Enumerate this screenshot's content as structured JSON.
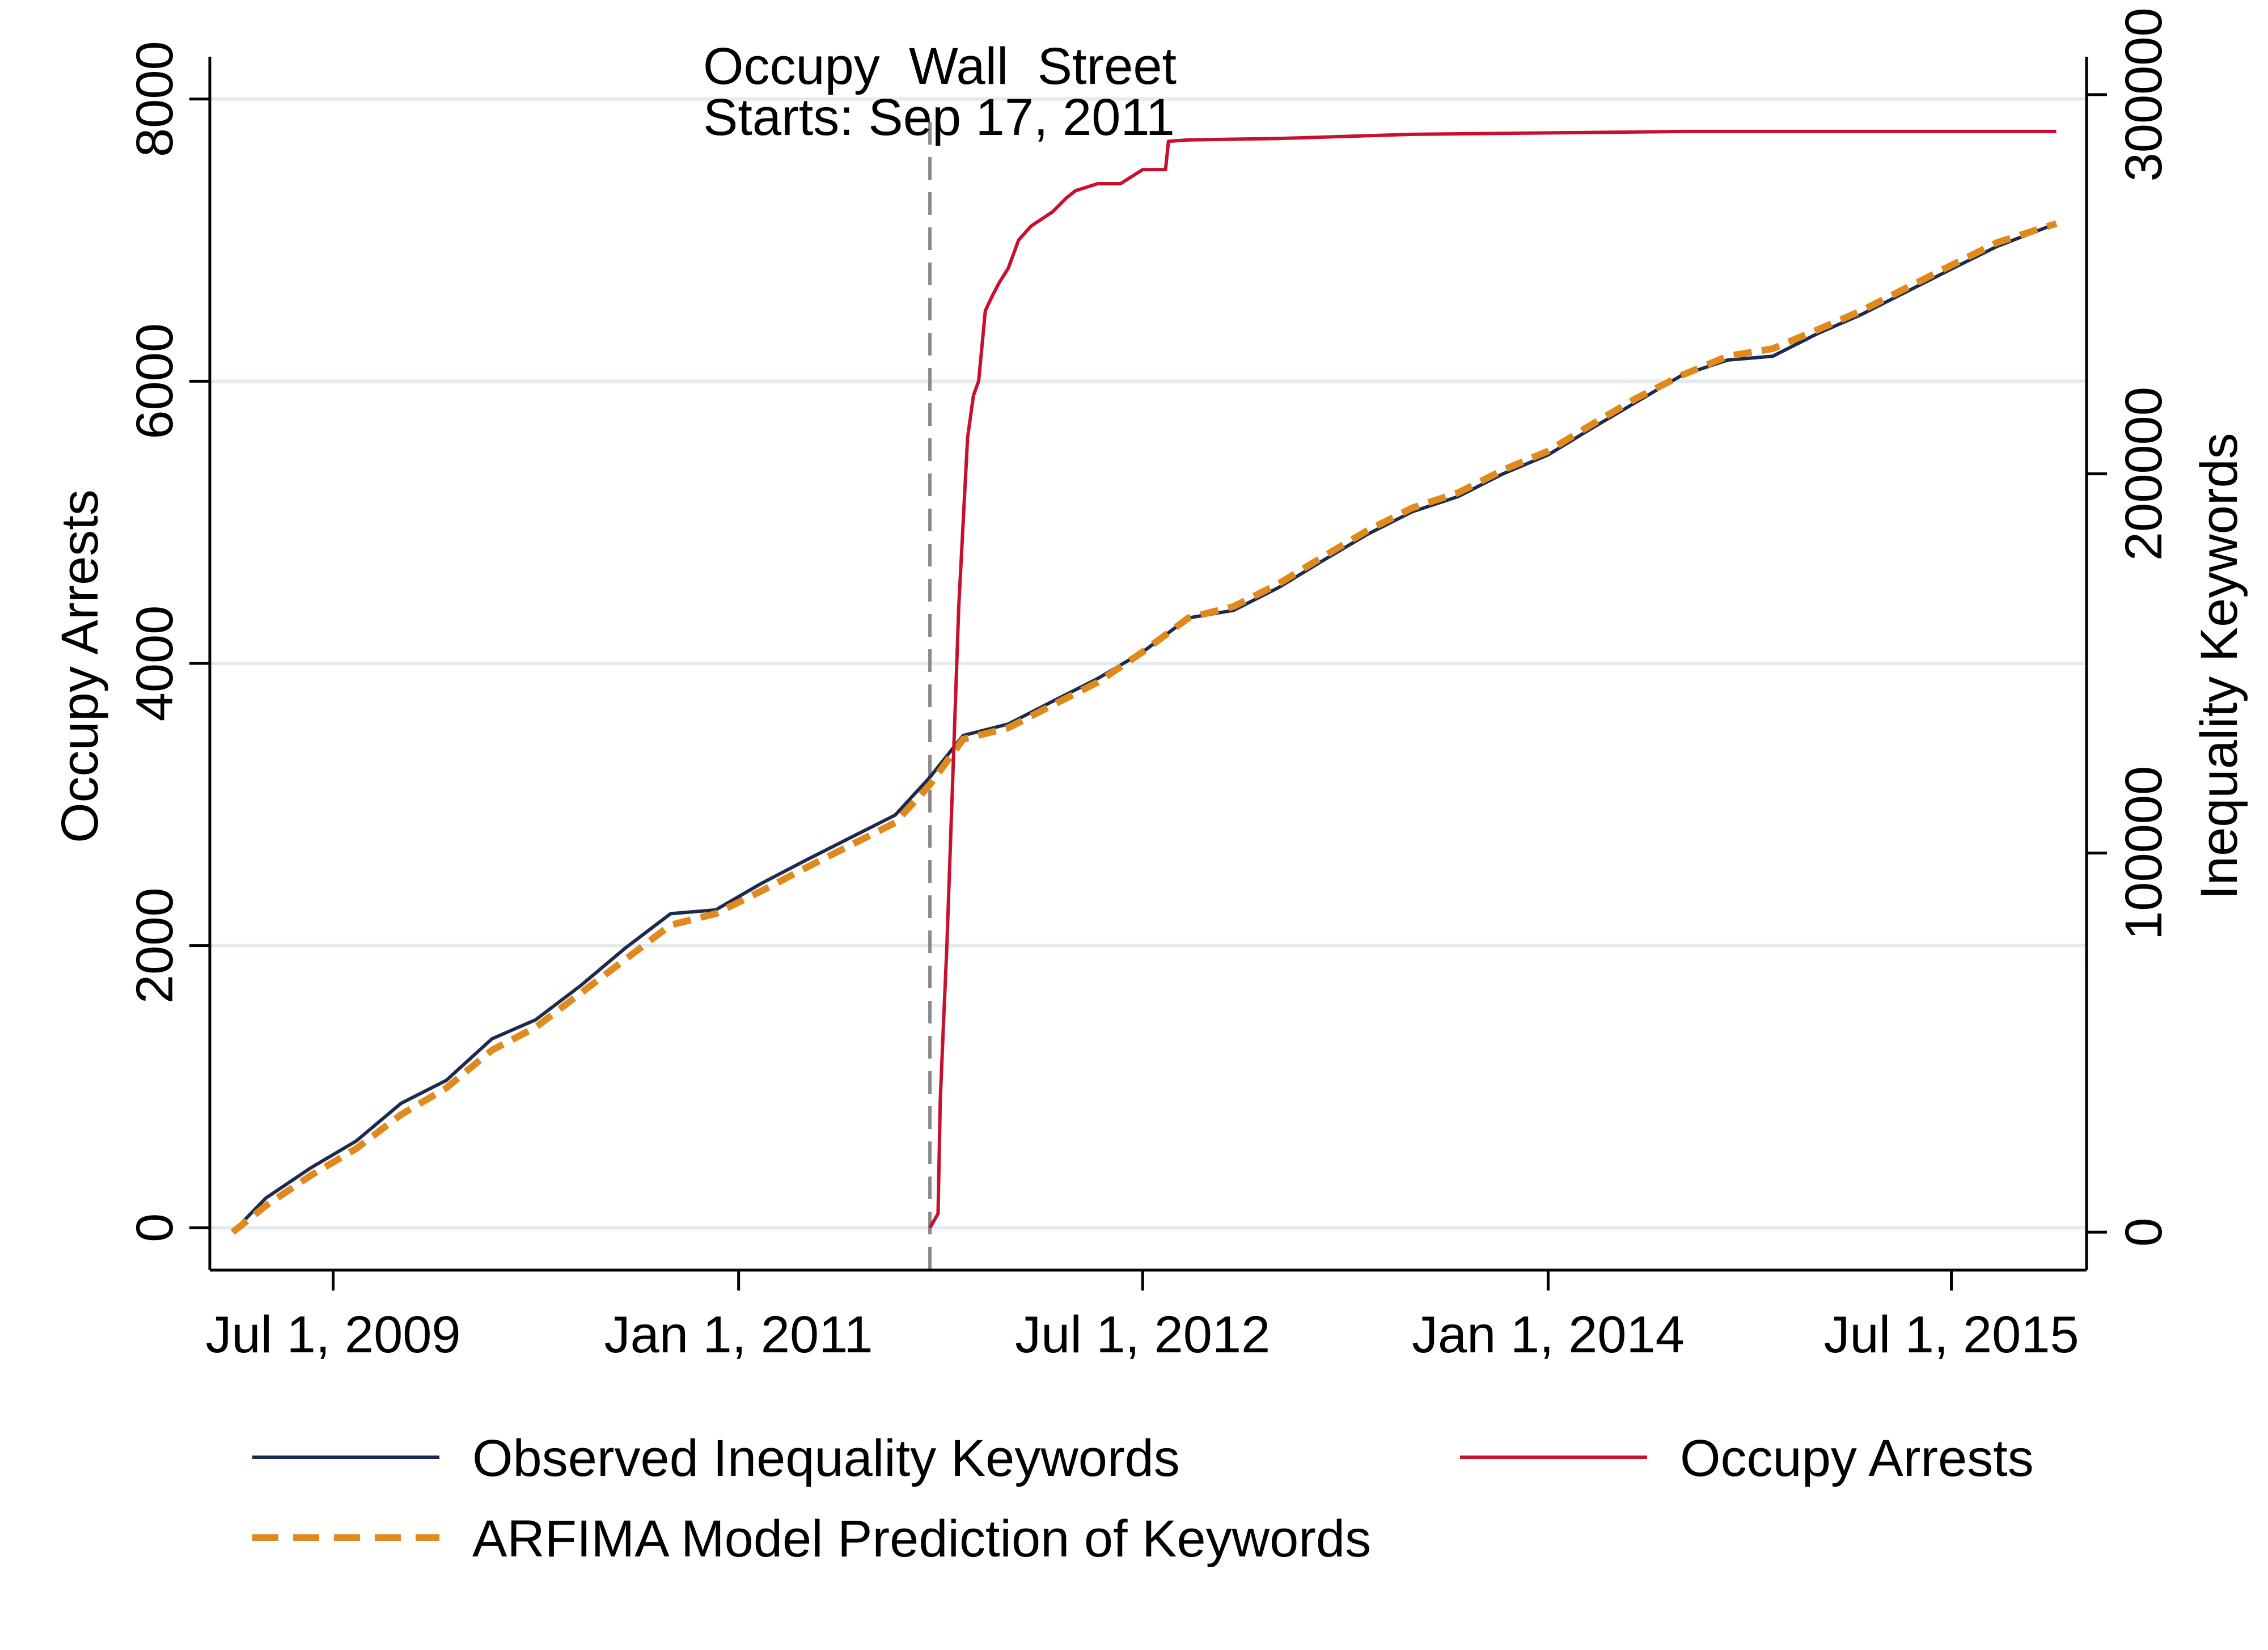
{
  "chart_data": {
    "type": "line",
    "x_axis": {
      "type": "date",
      "range": [
        "2009-01-15",
        "2015-12-31"
      ],
      "tick_values": [
        "2009-07-01",
        "2011-01-01",
        "2012-07-01",
        "2014-01-01",
        "2015-07-01"
      ],
      "tick_labels": [
        "Jul 1, 2009",
        "Jan 1, 2011",
        "Jul 1, 2012",
        "Jan 1, 2014",
        "Jul 1, 2015"
      ]
    },
    "y_left": {
      "label": "Occupy Arrests",
      "range": [
        -300,
        8300
      ],
      "ticks": [
        0,
        2000,
        4000,
        6000,
        8000
      ],
      "tick_labels": [
        "0",
        "2000",
        "4000",
        "6000",
        "8000"
      ]
    },
    "y_right": {
      "label": "Inequality Keywords",
      "range": [
        -10000,
        310000
      ],
      "ticks": [
        0,
        100000,
        200000,
        300000
      ],
      "tick_labels": [
        "0",
        "100000",
        "200000",
        "300000"
      ]
    },
    "grid": true,
    "annotation": {
      "line1": "Occupy  Wall  Street",
      "line2": "Starts: Sep 17, 2011",
      "date": "2011-09-17"
    },
    "legend": {
      "placement": "bottom",
      "entries": [
        {
          "label": "Observed Inequality Keywords",
          "color": "#1b2a4e",
          "style": "solid"
        },
        {
          "label": "Occupy Arrests",
          "color": "#c8102e",
          "style": "solid"
        },
        {
          "label": "ARFIMA Model Prediction of Keywords",
          "color": "#e08a1e",
          "style": "dashed"
        }
      ]
    },
    "series": [
      {
        "name": "Observed Inequality Keywords",
        "axis": "right",
        "color": "#1b2a4e",
        "style": "solid",
        "x": [
          "2009-02-15",
          "2009-04-01",
          "2009-06-01",
          "2009-08-01",
          "2009-10-01",
          "2009-12-01",
          "2010-02-01",
          "2010-04-01",
          "2010-06-01",
          "2010-08-01",
          "2010-10-01",
          "2010-12-01",
          "2011-02-01",
          "2011-04-01",
          "2011-06-01",
          "2011-08-01",
          "2011-09-17",
          "2011-11-01",
          "2012-01-01",
          "2012-03-01",
          "2012-05-01",
          "2012-07-01",
          "2012-09-01",
          "2012-11-01",
          "2013-01-01",
          "2013-03-01",
          "2013-05-01",
          "2013-07-01",
          "2013-09-01",
          "2013-11-01",
          "2014-01-01",
          "2014-03-01",
          "2014-05-01",
          "2014-07-01",
          "2014-09-01",
          "2014-11-01",
          "2015-01-01",
          "2015-03-01",
          "2015-05-01",
          "2015-07-01",
          "2015-09-01",
          "2015-11-20"
        ],
        "values": [
          0,
          9000,
          17000,
          24000,
          34000,
          40000,
          51000,
          56000,
          65000,
          75000,
          84000,
          85000,
          92000,
          98000,
          104000,
          110000,
          120000,
          131000,
          134000,
          140000,
          146000,
          153000,
          162000,
          164000,
          170000,
          177000,
          184000,
          190000,
          194000,
          200000,
          205000,
          212000,
          219000,
          226000,
          230000,
          231000,
          237000,
          242000,
          248000,
          254000,
          260000,
          266000
        ]
      },
      {
        "name": "ARFIMA Model Prediction of Keywords",
        "axis": "right",
        "color": "#e08a1e",
        "style": "dashed",
        "x": [
          "2009-02-15",
          "2009-04-01",
          "2009-06-01",
          "2009-08-01",
          "2009-10-01",
          "2009-12-01",
          "2010-02-01",
          "2010-04-01",
          "2010-06-01",
          "2010-08-01",
          "2010-10-01",
          "2010-12-01",
          "2011-02-01",
          "2011-04-01",
          "2011-06-01",
          "2011-08-01",
          "2011-09-17",
          "2011-11-01",
          "2012-01-01",
          "2012-03-01",
          "2012-05-01",
          "2012-07-01",
          "2012-09-01",
          "2012-11-01",
          "2013-01-01",
          "2013-03-01",
          "2013-05-01",
          "2013-07-01",
          "2013-09-01",
          "2013-11-01",
          "2014-01-01",
          "2014-03-01",
          "2014-05-01",
          "2014-07-01",
          "2014-09-01",
          "2014-11-01",
          "2015-01-01",
          "2015-03-01",
          "2015-05-01",
          "2015-07-01",
          "2015-09-01",
          "2015-11-20"
        ],
        "values": [
          0,
          7000,
          15000,
          22000,
          31000,
          38000,
          48000,
          54000,
          63000,
          72000,
          81000,
          84000,
          90000,
          96000,
          102000,
          108000,
          118000,
          130000,
          133000,
          139000,
          145000,
          153000,
          162000,
          165000,
          171000,
          178000,
          185000,
          191000,
          195000,
          201000,
          206000,
          213000,
          220000,
          226000,
          231000,
          233000,
          238000,
          243000,
          249000,
          255000,
          261000,
          266000
        ]
      },
      {
        "name": "Occupy Arrests",
        "axis": "left",
        "color": "#c8102e",
        "style": "solid",
        "x": [
          "2011-09-17",
          "2011-09-28",
          "2011-10-01",
          "2011-10-05",
          "2011-10-10",
          "2011-10-14",
          "2011-10-20",
          "2011-10-26",
          "2011-11-01",
          "2011-11-07",
          "2011-11-15",
          "2011-11-22",
          "2011-12-01",
          "2011-12-10",
          "2011-12-20",
          "2012-01-01",
          "2012-01-15",
          "2012-02-01",
          "2012-03-01",
          "2012-03-20",
          "2012-04-01",
          "2012-05-01",
          "2012-06-01",
          "2012-07-01",
          "2012-08-01",
          "2012-08-05",
          "2012-09-01",
          "2013-01-01",
          "2013-07-01",
          "2014-01-01",
          "2014-07-01",
          "2015-01-01",
          "2015-07-01",
          "2015-11-20"
        ],
        "values": [
          0,
          100,
          900,
          1400,
          2000,
          2600,
          3500,
          4400,
          5000,
          5600,
          5900,
          6000,
          6500,
          6600,
          6700,
          6800,
          7000,
          7100,
          7200,
          7300,
          7350,
          7400,
          7400,
          7500,
          7500,
          7700,
          7710,
          7720,
          7750,
          7760,
          7770,
          7770,
          7770,
          7770
        ]
      }
    ]
  }
}
